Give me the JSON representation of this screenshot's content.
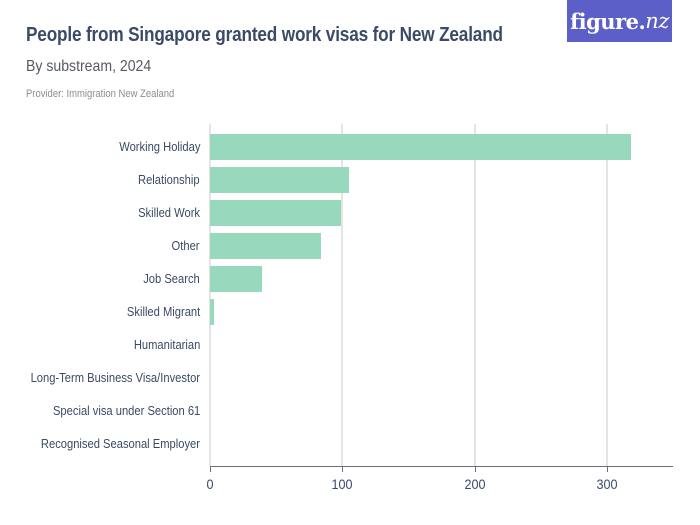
{
  "header": {
    "title": "People from Singapore granted work visas for New Zealand",
    "subtitle": "By substream, 2024",
    "provider": "Provider: Immigration New Zealand",
    "logo_text": "figure.",
    "logo_suffix": "nz"
  },
  "colors": {
    "bar": "#98d8bc",
    "logo_bg": "#5b5fc7",
    "text": "#3b4a66",
    "grid": "#e4e4e4"
  },
  "chart_data": {
    "type": "bar",
    "orientation": "horizontal",
    "title": "People from Singapore granted work visas for New Zealand",
    "subtitle": "By substream, 2024",
    "source": "Provider: Immigration New Zealand",
    "categories": [
      "Working Holiday",
      "Relationship",
      "Skilled Work",
      "Other",
      "Job Search",
      "Skilled Migrant",
      "Humanitarian",
      "Long-Term Business Visa/Investor",
      "Special visa under Section 61",
      "Recognised Seasonal Employer"
    ],
    "values": [
      318,
      105,
      99,
      84,
      39,
      3,
      0,
      0,
      0,
      0
    ],
    "xlabel": "",
    "ylabel": "",
    "xlim": [
      0,
      350
    ],
    "xticks": [
      0,
      100,
      200,
      300
    ],
    "xtick_labels": [
      "0",
      "100",
      "200",
      "300"
    ],
    "grid": true,
    "legend": null
  }
}
